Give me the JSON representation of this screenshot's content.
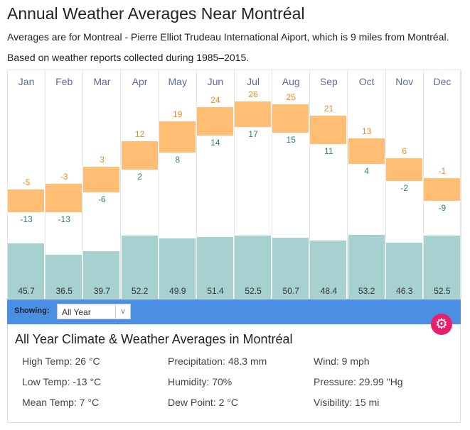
{
  "title": "Annual Weather Averages Near Montréal",
  "subtitle": "Averages are for Montreal - Pierre Elliot Trudeau International Aiport, which is 9 miles from Montréal.",
  "basis": "Based on weather reports collected during 1985–2015.",
  "chart_data": {
    "type": "bar",
    "categories": [
      "Jan",
      "Feb",
      "Mar",
      "Apr",
      "May",
      "Jun",
      "Jul",
      "Aug",
      "Sep",
      "Oct",
      "Nov",
      "Dec"
    ],
    "series": [
      {
        "name": "High Temp (°C)",
        "values": [
          -5,
          -3,
          3,
          12,
          19,
          24,
          26,
          25,
          21,
          13,
          6,
          -1
        ]
      },
      {
        "name": "Low Temp (°C)",
        "values": [
          -13,
          -13,
          -6,
          2,
          8,
          14,
          17,
          15,
          11,
          4,
          -2,
          -9
        ]
      },
      {
        "name": "Precipitation (mm)",
        "values": [
          45.7,
          36.5,
          39.7,
          52.2,
          49.9,
          51.4,
          52.5,
          50.7,
          48.4,
          53.2,
          46.3,
          52.5
        ]
      }
    ],
    "colors": {
      "temp": "#ffbe73",
      "high_label": "#f08a1e",
      "low_label": "#2d7f7f",
      "precip": "#a7d0d0"
    }
  },
  "showing": {
    "label": "Showing:",
    "value": "All Year"
  },
  "info": {
    "heading": "All Year Climate & Weather Averages in Montréal",
    "stats": [
      "High Temp: 26 °C",
      "Precipitation: 48.3 mm",
      "Wind: 9 mph",
      "Low Temp: -13 °C",
      "Humidity: 70%",
      "Pressure: 29.99 \"Hg",
      "Mean Temp: 7 °C",
      "Dew Point: 2 °C",
      "Visibility: 15 mi"
    ]
  },
  "colors": {
    "bar": "#4a8fe2",
    "gear": "#e8206a"
  }
}
